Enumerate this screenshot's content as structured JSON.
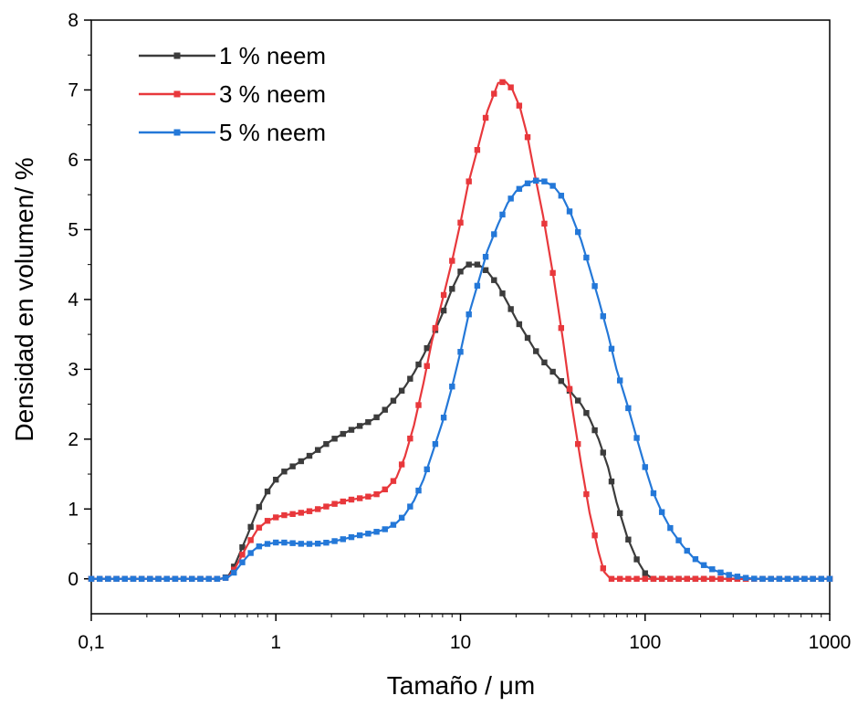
{
  "chart_data": {
    "type": "line",
    "xlabel": "Tamaño / μm",
    "ylabel": "Densidad en volumen/ %",
    "xscale": "log",
    "xlim": [
      0.1,
      1000
    ],
    "ylim": [
      -0.5,
      8
    ],
    "x_ticks": [
      0.1,
      1,
      10,
      100,
      1000
    ],
    "x_tick_labels": [
      "0,1",
      "1",
      "10",
      "100",
      "1000"
    ],
    "y_ticks": [
      0,
      1,
      2,
      3,
      4,
      5,
      6,
      7,
      8
    ],
    "y_tick_labels": [
      "0",
      "1",
      "2",
      "3",
      "4",
      "5",
      "6",
      "7",
      "8"
    ],
    "grid": false,
    "legend_position": "top-left",
    "series": [
      {
        "name": "1 % neem",
        "color": "#3c3c3c",
        "points": [
          [
            0.1,
            0
          ],
          [
            0.5,
            0
          ],
          [
            0.55,
            0.03
          ],
          [
            0.6,
            0.2
          ],
          [
            0.65,
            0.42
          ],
          [
            0.7,
            0.62
          ],
          [
            0.75,
            0.82
          ],
          [
            0.8,
            1.0
          ],
          [
            0.9,
            1.25
          ],
          [
            1,
            1.42
          ],
          [
            1.1,
            1.53
          ],
          [
            1.25,
            1.62
          ],
          [
            1.4,
            1.7
          ],
          [
            1.6,
            1.8
          ],
          [
            1.8,
            1.9
          ],
          [
            2,
            1.98
          ],
          [
            2.25,
            2.06
          ],
          [
            2.5,
            2.12
          ],
          [
            2.8,
            2.18
          ],
          [
            3.2,
            2.25
          ],
          [
            3.6,
            2.33
          ],
          [
            4,
            2.45
          ],
          [
            4.5,
            2.6
          ],
          [
            5,
            2.75
          ],
          [
            5.6,
            2.95
          ],
          [
            6.3,
            3.2
          ],
          [
            7,
            3.45
          ],
          [
            8,
            3.8
          ],
          [
            9,
            4.15
          ],
          [
            10,
            4.4
          ],
          [
            11,
            4.5
          ],
          [
            12.5,
            4.5
          ],
          [
            14,
            4.4
          ],
          [
            16,
            4.2
          ],
          [
            18,
            3.95
          ],
          [
            20,
            3.72
          ],
          [
            22.5,
            3.5
          ],
          [
            25,
            3.3
          ],
          [
            28,
            3.12
          ],
          [
            32,
            2.95
          ],
          [
            36,
            2.8
          ],
          [
            40,
            2.66
          ],
          [
            45,
            2.5
          ],
          [
            50,
            2.3
          ],
          [
            56,
            2.0
          ],
          [
            63,
            1.6
          ],
          [
            70,
            1.1
          ],
          [
            80,
            0.6
          ],
          [
            90,
            0.28
          ],
          [
            100,
            0.08
          ],
          [
            110,
            0
          ],
          [
            1000,
            0
          ]
        ]
      },
      {
        "name": "3 % neem",
        "color": "#e8383c",
        "points": [
          [
            0.1,
            0
          ],
          [
            0.5,
            0
          ],
          [
            0.55,
            0.02
          ],
          [
            0.6,
            0.15
          ],
          [
            0.65,
            0.32
          ],
          [
            0.7,
            0.48
          ],
          [
            0.75,
            0.6
          ],
          [
            0.8,
            0.72
          ],
          [
            0.9,
            0.83
          ],
          [
            1,
            0.88
          ],
          [
            1.1,
            0.91
          ],
          [
            1.25,
            0.93
          ],
          [
            1.4,
            0.95
          ],
          [
            1.6,
            0.98
          ],
          [
            1.8,
            1.02
          ],
          [
            2,
            1.06
          ],
          [
            2.25,
            1.1
          ],
          [
            2.5,
            1.13
          ],
          [
            2.8,
            1.15
          ],
          [
            3.2,
            1.18
          ],
          [
            3.6,
            1.22
          ],
          [
            4,
            1.3
          ],
          [
            4.5,
            1.45
          ],
          [
            5,
            1.75
          ],
          [
            5.6,
            2.2
          ],
          [
            6.3,
            2.8
          ],
          [
            7,
            3.4
          ],
          [
            8,
            4.0
          ],
          [
            9,
            4.55
          ],
          [
            10,
            5.1
          ],
          [
            11,
            5.65
          ],
          [
            12.5,
            6.2
          ],
          [
            14,
            6.7
          ],
          [
            16,
            7.1
          ],
          [
            17.5,
            7.12
          ],
          [
            19,
            7.02
          ],
          [
            21,
            6.75
          ],
          [
            23,
            6.35
          ],
          [
            25,
            5.85
          ],
          [
            28,
            5.2
          ],
          [
            32,
            4.3
          ],
          [
            36,
            3.4
          ],
          [
            40,
            2.5
          ],
          [
            45,
            1.65
          ],
          [
            50,
            0.95
          ],
          [
            56,
            0.38
          ],
          [
            60,
            0.1
          ],
          [
            65,
            0
          ],
          [
            1000,
            0
          ]
        ]
      },
      {
        "name": "5 % neem",
        "color": "#2478d8",
        "points": [
          [
            0.1,
            0
          ],
          [
            0.5,
            0
          ],
          [
            0.55,
            0.02
          ],
          [
            0.6,
            0.1
          ],
          [
            0.65,
            0.22
          ],
          [
            0.7,
            0.32
          ],
          [
            0.75,
            0.4
          ],
          [
            0.8,
            0.46
          ],
          [
            0.9,
            0.5
          ],
          [
            1,
            0.52
          ],
          [
            1.1,
            0.52
          ],
          [
            1.25,
            0.51
          ],
          [
            1.4,
            0.5
          ],
          [
            1.6,
            0.5
          ],
          [
            1.8,
            0.51
          ],
          [
            2,
            0.53
          ],
          [
            2.25,
            0.56
          ],
          [
            2.5,
            0.59
          ],
          [
            2.8,
            0.62
          ],
          [
            3.2,
            0.65
          ],
          [
            3.6,
            0.68
          ],
          [
            4,
            0.72
          ],
          [
            4.5,
            0.8
          ],
          [
            5,
            0.92
          ],
          [
            5.6,
            1.12
          ],
          [
            6.3,
            1.42
          ],
          [
            7,
            1.78
          ],
          [
            8,
            2.25
          ],
          [
            9,
            2.75
          ],
          [
            10,
            3.25
          ],
          [
            11,
            3.75
          ],
          [
            12.5,
            4.25
          ],
          [
            14,
            4.7
          ],
          [
            16,
            5.08
          ],
          [
            18,
            5.38
          ],
          [
            20,
            5.55
          ],
          [
            22.5,
            5.65
          ],
          [
            25,
            5.7
          ],
          [
            28,
            5.7
          ],
          [
            32,
            5.62
          ],
          [
            36,
            5.45
          ],
          [
            40,
            5.2
          ],
          [
            45,
            4.85
          ],
          [
            50,
            4.45
          ],
          [
            56,
            4.0
          ],
          [
            63,
            3.5
          ],
          [
            70,
            3.0
          ],
          [
            80,
            2.5
          ],
          [
            90,
            2.02
          ],
          [
            100,
            1.6
          ],
          [
            110,
            1.25
          ],
          [
            125,
            0.92
          ],
          [
            140,
            0.68
          ],
          [
            160,
            0.47
          ],
          [
            180,
            0.32
          ],
          [
            200,
            0.22
          ],
          [
            225,
            0.15
          ],
          [
            250,
            0.1
          ],
          [
            280,
            0.06
          ],
          [
            320,
            0.03
          ],
          [
            360,
            0.01
          ],
          [
            400,
            0
          ],
          [
            1000,
            0
          ]
        ]
      }
    ]
  }
}
